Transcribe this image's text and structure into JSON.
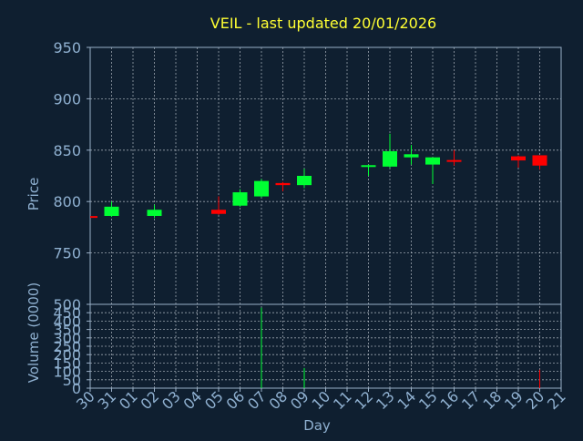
{
  "colors": {
    "background": "#0f1f30",
    "axis": "#9ab0c8",
    "text": "#8fb0d0",
    "title": "#ffff33",
    "grid": "#c8d0d8",
    "up": "#00ff33",
    "down": "#ff0000"
  },
  "chart_data": {
    "type": "candlestick",
    "title": "VEIL - last updated 20/01/2026",
    "xlabel": "Day",
    "price_panel": {
      "ylabel": "Price",
      "ylim": [
        700,
        950
      ],
      "yticks": [
        "950",
        "900",
        "850",
        "800",
        "750"
      ],
      "grid": true
    },
    "volume_panel": {
      "ylabel": "Volume (0000)",
      "ylim": [
        0,
        500
      ],
      "yticks": [
        "500",
        "450",
        "400",
        "350",
        "300",
        "250",
        "200",
        "150",
        "100",
        "50",
        "0"
      ],
      "grid": true
    },
    "x_tick_labels": [
      "30",
      "31",
      "01",
      "02",
      "03",
      "04",
      "05",
      "06",
      "07",
      "08",
      "09",
      "10",
      "11",
      "12",
      "13",
      "14",
      "15",
      "16",
      "17",
      "18",
      "19",
      "20",
      "21"
    ],
    "candles": [
      {
        "day": "30",
        "open": 785,
        "close": 785,
        "high": 785,
        "low": 785,
        "volume": 0,
        "direction": "down"
      },
      {
        "day": "31",
        "open": 786,
        "close": 795,
        "high": 800,
        "low": 785,
        "volume": 0,
        "direction": "up"
      },
      {
        "day": "02",
        "open": 786,
        "close": 792,
        "high": 797,
        "low": 784,
        "volume": 0,
        "direction": "up"
      },
      {
        "day": "05",
        "open": 792,
        "close": 788,
        "high": 805,
        "low": 787,
        "volume": 0,
        "direction": "down"
      },
      {
        "day": "06",
        "open": 796,
        "close": 809,
        "high": 812,
        "low": 795,
        "volume": 0,
        "direction": "up"
      },
      {
        "day": "07",
        "open": 805,
        "close": 820,
        "high": 822,
        "low": 804,
        "volume": 480,
        "direction": "up"
      },
      {
        "day": "08",
        "open": 818,
        "close": 816,
        "high": 819,
        "low": 810,
        "volume": 0,
        "direction": "down"
      },
      {
        "day": "09",
        "open": 816,
        "close": 825,
        "high": 832,
        "low": 813,
        "volume": 120,
        "direction": "up"
      },
      {
        "day": "12",
        "open": 834,
        "close": 835,
        "high": 836,
        "low": 825,
        "volume": 0,
        "direction": "up"
      },
      {
        "day": "13",
        "open": 834,
        "close": 849,
        "high": 866,
        "low": 833,
        "volume": 0,
        "direction": "up"
      },
      {
        "day": "14",
        "open": 843,
        "close": 846,
        "high": 855,
        "low": 836,
        "volume": 0,
        "direction": "up"
      },
      {
        "day": "15",
        "open": 836,
        "close": 843,
        "high": 843,
        "low": 817,
        "volume": 0,
        "direction": "up"
      },
      {
        "day": "16",
        "open": 840,
        "close": 839,
        "high": 850,
        "low": 835,
        "volume": 0,
        "direction": "down"
      },
      {
        "day": "19",
        "open": 844,
        "close": 840,
        "high": 845,
        "low": 833,
        "volume": 0,
        "direction": "down"
      },
      {
        "day": "20",
        "open": 845,
        "close": 835,
        "high": 845,
        "low": 831,
        "volume": 110,
        "direction": "down"
      }
    ]
  }
}
